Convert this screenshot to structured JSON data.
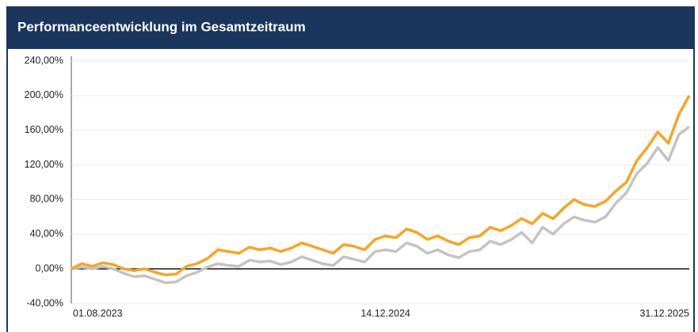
{
  "chart_data": {
    "type": "line",
    "title": "Performanceentwicklung im Gesamtzeitraum",
    "categories": [
      "01.08.2023",
      null,
      null,
      null,
      null,
      null,
      null,
      null,
      null,
      null,
      null,
      null,
      null,
      null,
      null,
      null,
      null,
      null,
      null,
      null,
      null,
      null,
      null,
      null,
      null,
      null,
      null,
      null,
      null,
      null,
      "14.12.2024",
      null,
      null,
      null,
      null,
      null,
      null,
      null,
      null,
      null,
      null,
      null,
      null,
      null,
      null,
      null,
      null,
      null,
      null,
      null,
      null,
      null,
      null,
      null,
      null,
      null,
      null,
      null,
      null,
      "31.12.2025"
    ],
    "series": [
      {
        "color": "#c4c4c4",
        "values": [
          0,
          2,
          0,
          3,
          0,
          -5,
          -9,
          -8,
          -12,
          -16,
          -15,
          -8,
          -4,
          2,
          6,
          4,
          3,
          10,
          8,
          9,
          5,
          8,
          14,
          10,
          6,
          4,
          14,
          11,
          8,
          20,
          22,
          20,
          30,
          26,
          18,
          22,
          16,
          13,
          20,
          22,
          32,
          28,
          34,
          42,
          30,
          48,
          40,
          52,
          60,
          56,
          54,
          60,
          76,
          88,
          110,
          122,
          140,
          125,
          155,
          164
        ]
      },
      {
        "color": "#f5a623",
        "values": [
          0,
          6,
          3,
          7,
          5,
          0,
          -2,
          0,
          -4,
          -7,
          -6,
          3,
          6,
          12,
          22,
          20,
          18,
          25,
          22,
          24,
          20,
          24,
          30,
          26,
          22,
          18,
          28,
          26,
          22,
          34,
          38,
          36,
          46,
          42,
          34,
          38,
          32,
          28,
          36,
          38,
          48,
          44,
          50,
          58,
          52,
          64,
          58,
          70,
          80,
          74,
          72,
          78,
          90,
          100,
          125,
          140,
          158,
          145,
          178,
          200
        ]
      }
    ],
    "ylim": [
      -40,
      240
    ],
    "yticks": [
      {
        "value": -40,
        "label": "-40,00%"
      },
      {
        "value": 0,
        "label": "0,00%"
      },
      {
        "value": 40,
        "label": "40,00%"
      },
      {
        "value": 80,
        "label": "80,00%"
      },
      {
        "value": 120,
        "label": "120,00%"
      },
      {
        "value": 160,
        "label": "160,00%"
      },
      {
        "value": 200,
        "label": "200,00%"
      },
      {
        "value": 240,
        "label": "240,00%"
      }
    ],
    "grid": true
  }
}
